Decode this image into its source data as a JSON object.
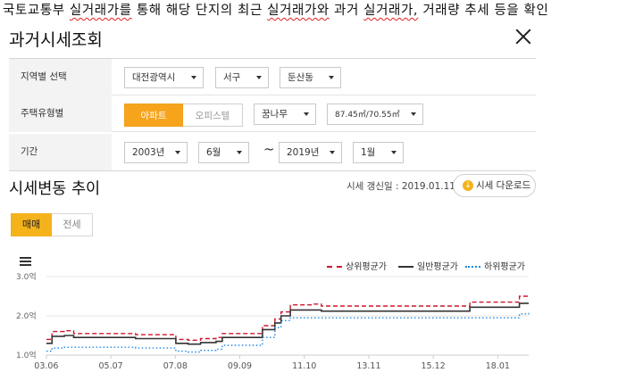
{
  "document": {
    "text_parts": [
      {
        "text": "국토교통부 ",
        "sq": false
      },
      {
        "text": "실거래가를",
        "sq": true
      },
      {
        "text": " 통해 해당 단지의 최근 ",
        "sq": false
      },
      {
        "text": "실거래가와",
        "sq": true
      },
      {
        "text": " 과거 ",
        "sq": false
      },
      {
        "text": "실거래가,",
        "sq": true
      },
      {
        "text": " 거래량 추세 등을 확인",
        "sq": false
      }
    ]
  },
  "modal": {
    "title": "과거시세조회"
  },
  "filters": {
    "region": {
      "label": "지역별 선택",
      "city": "대전광역시",
      "district": "서구",
      "dong": "둔산동"
    },
    "housing": {
      "label": "주택유형별",
      "type_options": [
        "아파트",
        "오피스텔"
      ],
      "selected_type": "아파트",
      "complex": "꿈나무",
      "area": "87.45㎡/70.55㎡"
    },
    "period": {
      "label": "기간",
      "start_year": "2003년",
      "start_month": "6월",
      "separator": "~",
      "end_year": "2019년",
      "end_month": "1월"
    }
  },
  "trend": {
    "title": "시세변동 추이",
    "updated": "시세 갱신일 : 2019.01.11",
    "download_label": "시세 다운로드",
    "tabs": [
      "매매",
      "전세"
    ],
    "active_tab": "매매"
  },
  "colors": {
    "accent": "#f4b21b",
    "upper": "#d0152e",
    "general": "#333333",
    "lower": "#1e88e5"
  },
  "chart_data": {
    "type": "line",
    "x_ticks": [
      "03.06",
      "05.07",
      "07.08",
      "09.09",
      "11.10",
      "13.11",
      "15.12",
      "18.01"
    ],
    "y_ticks": [
      "1.0억",
      "2.0억",
      "3.0억"
    ],
    "ylim": [
      1.0,
      3.0
    ],
    "xlim": [
      2003.42,
      2019.0
    ],
    "legend_position": "top-right",
    "grid": "horizontal",
    "series": [
      {
        "name": "상위평균가",
        "style": "dashed",
        "points": [
          [
            2003.42,
            1.4
          ],
          [
            2003.6,
            1.6
          ],
          [
            2004.0,
            1.62
          ],
          [
            2004.3,
            1.55
          ],
          [
            2006.0,
            1.55
          ],
          [
            2006.3,
            1.52
          ],
          [
            2007.5,
            1.52
          ],
          [
            2007.6,
            1.4
          ],
          [
            2008.0,
            1.38
          ],
          [
            2008.4,
            1.42
          ],
          [
            2008.9,
            1.45
          ],
          [
            2009.1,
            1.55
          ],
          [
            2010.1,
            1.55
          ],
          [
            2010.4,
            1.75
          ],
          [
            2010.8,
            1.92
          ],
          [
            2011.0,
            2.1
          ],
          [
            2011.3,
            2.28
          ],
          [
            2012.0,
            2.3
          ],
          [
            2012.3,
            2.25
          ],
          [
            2017.0,
            2.25
          ],
          [
            2017.1,
            2.35
          ],
          [
            2018.5,
            2.35
          ],
          [
            2018.7,
            2.5
          ],
          [
            2019.0,
            2.52
          ]
        ]
      },
      {
        "name": "일반평균가",
        "style": "solid",
        "points": [
          [
            2003.42,
            1.3
          ],
          [
            2003.6,
            1.48
          ],
          [
            2004.0,
            1.5
          ],
          [
            2004.3,
            1.45
          ],
          [
            2006.0,
            1.45
          ],
          [
            2006.3,
            1.42
          ],
          [
            2007.5,
            1.42
          ],
          [
            2007.6,
            1.3
          ],
          [
            2008.0,
            1.28
          ],
          [
            2008.4,
            1.32
          ],
          [
            2008.9,
            1.35
          ],
          [
            2009.1,
            1.45
          ],
          [
            2010.1,
            1.45
          ],
          [
            2010.4,
            1.65
          ],
          [
            2010.8,
            1.82
          ],
          [
            2011.0,
            2.0
          ],
          [
            2011.3,
            2.15
          ],
          [
            2012.0,
            2.15
          ],
          [
            2012.3,
            2.12
          ],
          [
            2017.0,
            2.12
          ],
          [
            2017.1,
            2.22
          ],
          [
            2018.5,
            2.22
          ],
          [
            2018.7,
            2.32
          ],
          [
            2019.0,
            2.32
          ]
        ]
      },
      {
        "name": "하위평균가",
        "style": "dotted",
        "points": [
          [
            2003.42,
            1.1
          ],
          [
            2003.6,
            1.18
          ],
          [
            2004.0,
            1.2
          ],
          [
            2006.0,
            1.2
          ],
          [
            2006.3,
            1.18
          ],
          [
            2007.5,
            1.18
          ],
          [
            2007.6,
            1.1
          ],
          [
            2008.0,
            1.08
          ],
          [
            2008.4,
            1.12
          ],
          [
            2008.9,
            1.15
          ],
          [
            2009.1,
            1.25
          ],
          [
            2010.1,
            1.25
          ],
          [
            2010.4,
            1.45
          ],
          [
            2010.8,
            1.7
          ],
          [
            2011.0,
            1.88
          ],
          [
            2011.3,
            1.95
          ],
          [
            2018.5,
            1.95
          ],
          [
            2018.7,
            2.05
          ],
          [
            2019.0,
            2.1
          ]
        ]
      }
    ]
  }
}
